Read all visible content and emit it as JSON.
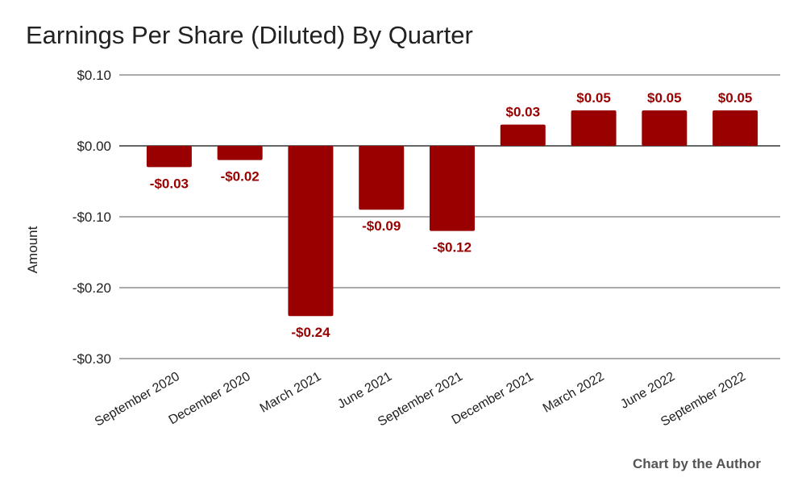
{
  "chart_data": {
    "type": "bar",
    "title": "Earnings Per Share (Diluted) By Quarter",
    "xlabel": "",
    "ylabel": "Amount",
    "ylim": [
      -0.3,
      0.1
    ],
    "yticks": [
      0.1,
      0.0,
      -0.1,
      -0.2,
      -0.3
    ],
    "ytick_labels": [
      "$0.10",
      "$0.00",
      "-$0.10",
      "-$0.20",
      "-$0.30"
    ],
    "categories": [
      "September 2020",
      "December 2020",
      "March 2021",
      "June 2021",
      "September 2021",
      "December 2021",
      "March 2022",
      "June 2022",
      "September 2022"
    ],
    "values": [
      -0.03,
      -0.02,
      -0.24,
      -0.09,
      -0.12,
      0.03,
      0.05,
      0.05,
      0.05
    ],
    "data_labels": [
      "-$0.03",
      "-$0.02",
      "-$0.24",
      "-$0.09",
      "-$0.12",
      "$0.03",
      "$0.05",
      "$0.05",
      "$0.05"
    ],
    "grid": true,
    "legend": "none",
    "bar_color": "#990000",
    "label_color": "#990000"
  },
  "footer": {
    "credit": "Chart by the Author"
  }
}
